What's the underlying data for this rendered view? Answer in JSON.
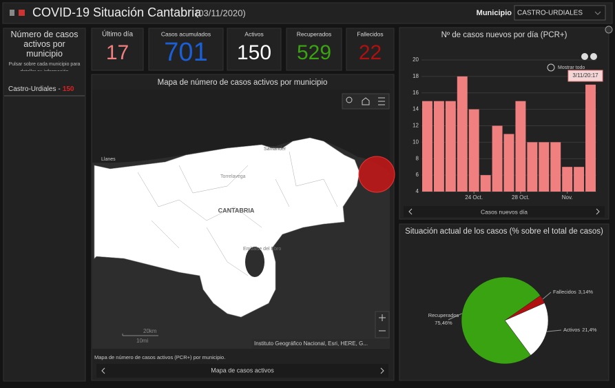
{
  "header": {
    "title": "COVID-19 Situación Cantabria",
    "date": "(03/11/2020)",
    "municipio_label": "Municipio",
    "municipio_value": "CASTRO-URDIALES"
  },
  "left_panel": {
    "title": "Número de casos activos por municipio",
    "hint": "Pulsar sobre cada municipio para detallar su información",
    "separator": "-",
    "items": [
      {
        "name": "Castro-Urdiales",
        "value": 150,
        "color": "#e02020"
      }
    ]
  },
  "indicators": [
    {
      "label": "Último día",
      "value": 17,
      "color": "#f08080"
    },
    {
      "label": "Casos acumulados",
      "value": 701,
      "color": "#1a5fd6"
    },
    {
      "label": "Activos",
      "value": 150,
      "color": "#ffffff"
    },
    {
      "label": "Recuperados",
      "value": 529,
      "color": "#3aa312"
    },
    {
      "label": "Fallecidos",
      "value": 22,
      "color": "#b01010"
    }
  ],
  "map": {
    "title": "Mapa de número de casos activos por municipio",
    "places": [
      "Llanes",
      "Torrelavega",
      "Santander",
      "CANTABRIA",
      "Embalse del Ebro"
    ],
    "scale_km": "20km",
    "scale_mi": "10mi",
    "attribution": "Instituto Geográfico Nacional, Esri, HERE, G...",
    "caption": "Mapa de número de casos activos (PCR+) por municipio.",
    "tab": "Mapa de casos activos"
  },
  "bar_chart": {
    "type": "bar",
    "title": "Nº de casos nuevos por día (PCR+)",
    "x_label": "Casos nuevos día",
    "show_all": "Mostrar todo",
    "tooltip": "3/11/20:17",
    "categories": [
      null,
      null,
      null,
      null,
      "24 Oct.",
      null,
      null,
      null,
      "28 Oct.",
      null,
      null,
      null,
      "Nov.",
      null,
      null
    ],
    "values": [
      15,
      15,
      15,
      18,
      14,
      6,
      12,
      11,
      15,
      10,
      10,
      10,
      7,
      7,
      17
    ],
    "color": "#f08080",
    "ylim": [
      4,
      20
    ],
    "yticks": [
      4,
      6,
      8,
      10,
      12,
      14,
      16,
      18,
      20
    ],
    "grid": true
  },
  "pie_chart": {
    "type": "pie",
    "title": "Situación actual de los casos (% sobre el total de casos)",
    "categories": [
      "Fallecidos",
      "Activos",
      "Recuperados"
    ],
    "values": [
      3.14,
      21.4,
      75.46
    ],
    "value_labels": [
      "3,14%",
      "21,4%",
      "75,46%"
    ],
    "colors": [
      "#b01010",
      "#ffffff",
      "#3aa312"
    ]
  }
}
